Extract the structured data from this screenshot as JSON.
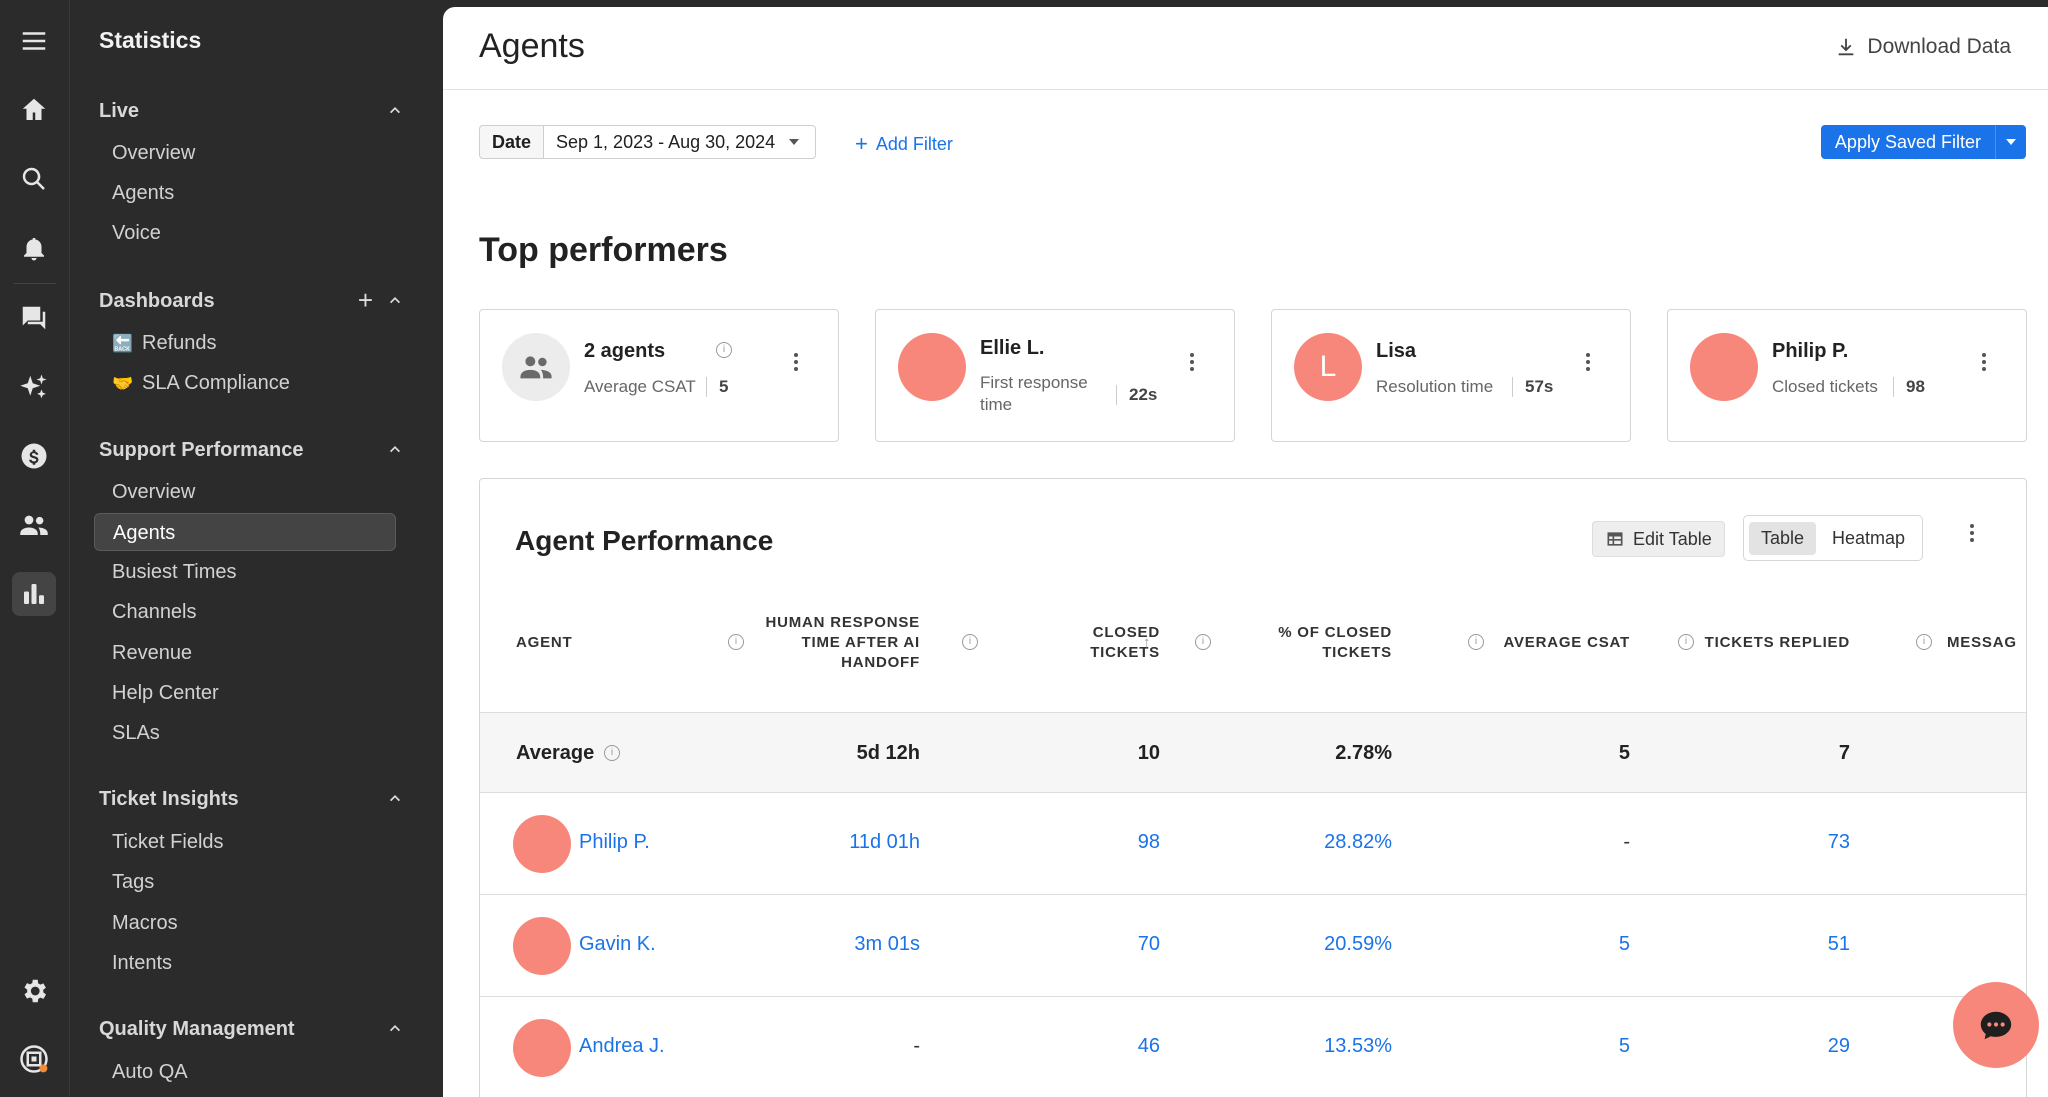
{
  "sidebar": {
    "title": "Statistics",
    "sections": {
      "live": {
        "label": "Live",
        "items": [
          "Overview",
          "Agents",
          "Voice"
        ]
      },
      "dashboards": {
        "label": "Dashboards",
        "items": [
          "Refunds",
          "SLA Compliance"
        ]
      },
      "support": {
        "label": "Support Performance",
        "items": [
          "Overview",
          "Agents",
          "Busiest Times",
          "Channels",
          "Revenue",
          "Help Center",
          "SLAs"
        ]
      },
      "insights": {
        "label": "Ticket Insights",
        "items": [
          "Ticket Fields",
          "Tags",
          "Macros",
          "Intents"
        ]
      },
      "quality": {
        "label": "Quality Management",
        "items": [
          "Auto QA"
        ]
      }
    },
    "icons": [
      "menu-icon",
      "home-icon",
      "search-icon",
      "bell-icon",
      "chat-icon",
      "sparkles-icon",
      "dollar-icon",
      "users-icon",
      "bar-chart-icon",
      "gear-icon",
      "app-logo-icon"
    ]
  },
  "header": {
    "title": "Agents",
    "download": "Download Data"
  },
  "filters": {
    "date_label": "Date",
    "date_value": "Sep 1, 2023 - Aug 30, 2024",
    "add_filter": "Add Filter",
    "apply_saved": "Apply Saved Filter"
  },
  "top": {
    "title": "Top performers",
    "cards": [
      {
        "name": "2 agents",
        "metric": "Average CSAT",
        "value": "5"
      },
      {
        "name": "Ellie L.",
        "metric": "First response time",
        "value": "22s"
      },
      {
        "name": "Lisa",
        "initial": "L",
        "metric": "Resolution time",
        "value": "57s"
      },
      {
        "name": "Philip P.",
        "metric": "Closed tickets",
        "value": "98"
      }
    ]
  },
  "perf": {
    "title": "Agent Performance",
    "edit_table": "Edit Table",
    "view_table": "Table",
    "view_heatmap": "Heatmap",
    "columns": [
      "AGENT",
      "HUMAN RESPONSE TIME AFTER AI HANDOFF",
      "CLOSED TICKETS",
      "% OF CLOSED TICKETS",
      "AVERAGE CSAT",
      "TICKETS REPLIED",
      "MESSAG"
    ],
    "average": {
      "label": "Average",
      "response": "5d 12h",
      "closed": "10",
      "pct": "2.78%",
      "csat": "5",
      "replied": "7"
    },
    "rows": [
      {
        "name": "Philip P.",
        "response": "11d 01h",
        "closed": "98",
        "pct": "28.82%",
        "csat": "-",
        "replied": "73"
      },
      {
        "name": "Gavin K.",
        "response": "3m 01s",
        "closed": "70",
        "pct": "20.59%",
        "csat": "5",
        "replied": "51"
      },
      {
        "name": "Andrea J.",
        "response": "-",
        "closed": "46",
        "pct": "13.53%",
        "csat": "5",
        "replied": "29"
      }
    ]
  },
  "colors": {
    "accent": "#1a73e8",
    "avatar": "#f8877b",
    "sidebar_bg": "#2b2b2b"
  }
}
